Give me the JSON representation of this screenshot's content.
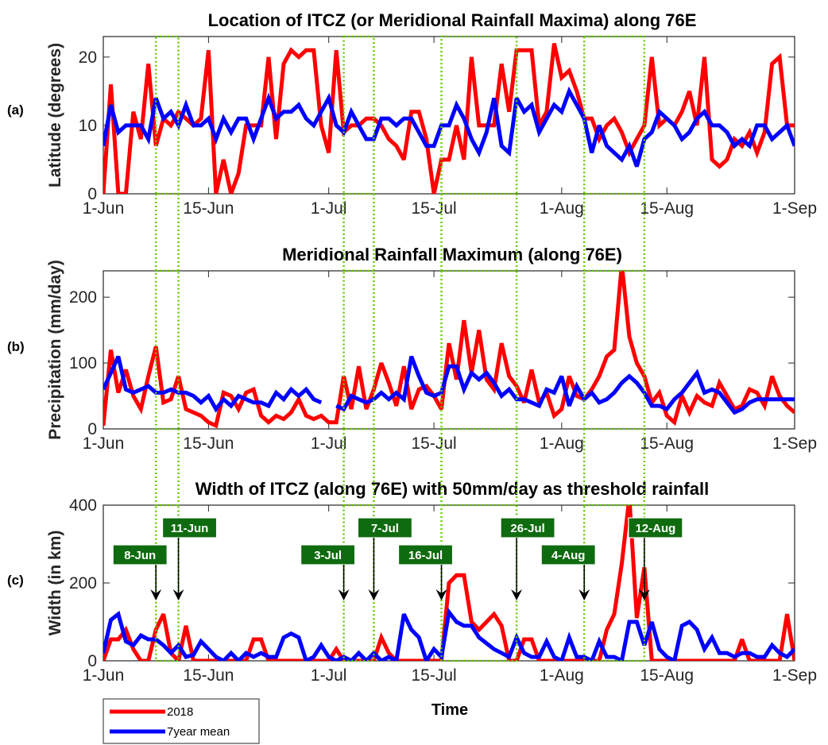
{
  "figure": {
    "xlabel": "Time",
    "x_ticks": [
      {
        "day": 1,
        "label": "1-Jun"
      },
      {
        "day": 15,
        "label": "15-Jun"
      },
      {
        "day": 31,
        "label": "1-Jul"
      },
      {
        "day": 45,
        "label": "15-Jul"
      },
      {
        "day": 62,
        "label": "1-Aug"
      },
      {
        "day": 76,
        "label": "15-Aug"
      },
      {
        "day": 93,
        "label": "1-Sep"
      }
    ],
    "x_range_day": [
      1,
      93
    ],
    "day_index_note": "1-Jun",
    "legend": {
      "placement": "bottom-left",
      "entries": [
        {
          "label": "2018",
          "color": "#ff0000"
        },
        {
          "label": "7year mean",
          "color": "#0000ff"
        }
      ]
    },
    "colors": {
      "y2018": "#ff0000",
      "mean": "#0000ff",
      "window": "#66cc00",
      "annotation_box": "#0f6b0f"
    }
  },
  "chart_data": [
    {
      "type": "line",
      "panel_label": "(a)",
      "title": "Location of ITCZ (or Meridional Rainfall Maxima) along 76E",
      "ylabel": "Latitude (degrees)",
      "ylim": [
        0,
        23
      ],
      "yticks": [
        0,
        10,
        20
      ],
      "series": [
        {
          "name": "2018",
          "values": [
            0,
            16,
            0,
            0,
            12,
            8,
            19,
            7,
            11,
            10,
            12,
            11,
            10,
            11,
            21,
            0,
            5,
            0,
            3,
            10,
            10,
            10,
            20,
            8,
            19,
            21,
            20,
            21,
            21,
            10,
            6,
            21,
            9,
            10,
            10,
            11,
            11,
            10,
            8,
            7,
            5,
            12,
            12,
            8,
            0,
            5,
            5,
            10,
            5,
            20,
            10,
            10,
            10,
            19,
            12,
            21,
            21,
            21,
            10,
            12,
            22,
            17,
            18,
            15,
            11,
            11,
            8,
            10,
            11,
            9,
            6,
            8,
            10,
            20,
            10,
            11,
            10,
            12,
            15,
            10,
            20,
            5,
            4,
            5,
            8,
            7,
            9,
            6,
            9,
            19,
            20,
            10,
            10
          ]
        },
        {
          "name": "7year mean",
          "values": [
            7,
            13,
            9,
            10,
            10,
            10,
            8,
            14,
            11,
            12,
            10,
            13,
            10,
            10,
            11,
            8,
            11,
            9,
            11,
            11,
            8,
            11,
            14,
            11,
            12,
            12,
            13,
            11,
            10,
            12,
            14,
            10,
            9,
            12,
            10,
            8,
            8,
            11,
            11,
            10,
            11,
            11,
            9,
            7,
            7,
            10,
            10,
            13,
            11,
            8,
            6,
            9,
            14,
            7,
            6,
            14,
            12,
            13,
            9,
            11,
            13,
            12,
            15,
            13,
            11,
            6,
            10,
            7,
            6,
            5,
            7,
            4,
            8,
            9,
            12,
            11,
            10,
            8,
            9,
            11,
            12,
            10,
            10,
            9,
            7,
            8,
            7,
            10,
            10,
            8,
            9,
            10,
            7
          ]
        }
      ]
    },
    {
      "type": "line",
      "panel_label": "(b)",
      "title": "Meridional Rainfall Maximum (along 76E)",
      "ylabel": "Precipitation (mm/day)",
      "ylim": [
        0,
        240
      ],
      "yticks": [
        0,
        100,
        200
      ],
      "series": [
        {
          "name": "2018",
          "values": [
            5,
            120,
            55,
            90,
            50,
            30,
            80,
            125,
            40,
            45,
            80,
            30,
            25,
            20,
            10,
            5,
            55,
            50,
            30,
            55,
            60,
            20,
            10,
            20,
            15,
            25,
            45,
            20,
            15,
            20,
            10,
            10,
            80,
            30,
            95,
            30,
            60,
            100,
            70,
            35,
            95,
            30,
            60,
            65,
            50,
            30,
            130,
            75,
            165,
            85,
            150,
            75,
            60,
            130,
            80,
            65,
            40,
            90,
            40,
            55,
            20,
            30,
            80,
            50,
            45,
            60,
            80,
            110,
            120,
            250,
            140,
            100,
            80,
            40,
            55,
            20,
            10,
            50,
            25,
            50,
            40,
            35,
            70,
            50,
            30,
            35,
            60,
            55,
            35,
            80,
            50,
            35,
            25
          ]
        },
        {
          "name": "7year mean",
          "values": [
            60,
            85,
            110,
            60,
            55,
            60,
            65,
            55,
            55,
            60,
            55,
            55,
            50,
            40,
            50,
            30,
            45,
            35,
            50,
            45,
            40,
            40,
            35,
            55,
            45,
            60,
            50,
            60,
            45,
            40,
            null,
            35,
            30,
            50,
            45,
            40,
            45,
            55,
            45,
            55,
            45,
            110,
            80,
            55,
            50,
            55,
            95,
            95,
            60,
            85,
            75,
            85,
            70,
            50,
            60,
            45,
            45,
            40,
            35,
            60,
            55,
            80,
            35,
            65,
            45,
            55,
            40,
            45,
            55,
            70,
            80,
            70,
            55,
            35,
            35,
            30,
            45,
            55,
            70,
            85,
            55,
            60,
            55,
            40,
            25,
            30,
            40,
            45,
            45,
            45,
            45,
            45,
            45
          ]
        }
      ]
    },
    {
      "type": "line",
      "panel_label": "(c)",
      "title": "Width of ITCZ (along 76E) with 50mm/day as threshold rainfall",
      "ylabel": "Width (in km)",
      "ylim": [
        0,
        400
      ],
      "yticks": [
        0,
        200,
        400
      ],
      "series": [
        {
          "name": "2018",
          "values": [
            0,
            55,
            55,
            80,
            30,
            0,
            0,
            80,
            120,
            20,
            0,
            90,
            0,
            0,
            0,
            0,
            0,
            0,
            0,
            0,
            55,
            55,
            0,
            0,
            0,
            0,
            0,
            0,
            0,
            0,
            0,
            30,
            0,
            0,
            0,
            0,
            0,
            60,
            20,
            0,
            0,
            0,
            0,
            0,
            0,
            0,
            200,
            220,
            220,
            100,
            80,
            100,
            120,
            90,
            0,
            0,
            55,
            55,
            0,
            0,
            0,
            0,
            0,
            0,
            0,
            0,
            0,
            80,
            120,
            250,
            420,
            110,
            240,
            0,
            0,
            0,
            0,
            0,
            0,
            0,
            0,
            0,
            0,
            0,
            0,
            55,
            0,
            0,
            0,
            0,
            0,
            120,
            0
          ]
        },
        {
          "name": "7year mean",
          "values": [
            20,
            105,
            120,
            50,
            40,
            65,
            55,
            55,
            40,
            20,
            40,
            10,
            15,
            50,
            30,
            10,
            0,
            20,
            0,
            20,
            10,
            20,
            10,
            10,
            60,
            70,
            60,
            0,
            10,
            40,
            10,
            0,
            10,
            0,
            20,
            0,
            20,
            0,
            10,
            0,
            120,
            80,
            60,
            0,
            30,
            10,
            125,
            100,
            90,
            90,
            60,
            45,
            30,
            20,
            10,
            60,
            20,
            10,
            10,
            50,
            10,
            0,
            60,
            10,
            10,
            0,
            50,
            10,
            10,
            0,
            100,
            100,
            40,
            100,
            30,
            10,
            0,
            90,
            100,
            80,
            30,
            60,
            20,
            20,
            10,
            20,
            20,
            10,
            10,
            40,
            20,
            10,
            30
          ]
        }
      ]
    }
  ],
  "windows": [
    {
      "start_day": 8,
      "end_day": 11,
      "start_label": "8-Jun",
      "end_label": "11-Jun"
    },
    {
      "start_day": 33,
      "end_day": 37,
      "start_label": "3-Jul",
      "end_label": "7-Jul"
    },
    {
      "start_day": 46,
      "end_day": 56,
      "start_label": "16-Jul",
      "end_label": "26-Jul"
    },
    {
      "start_day": 65,
      "end_day": 73,
      "start_label": "4-Aug",
      "end_label": "12-Aug"
    }
  ]
}
